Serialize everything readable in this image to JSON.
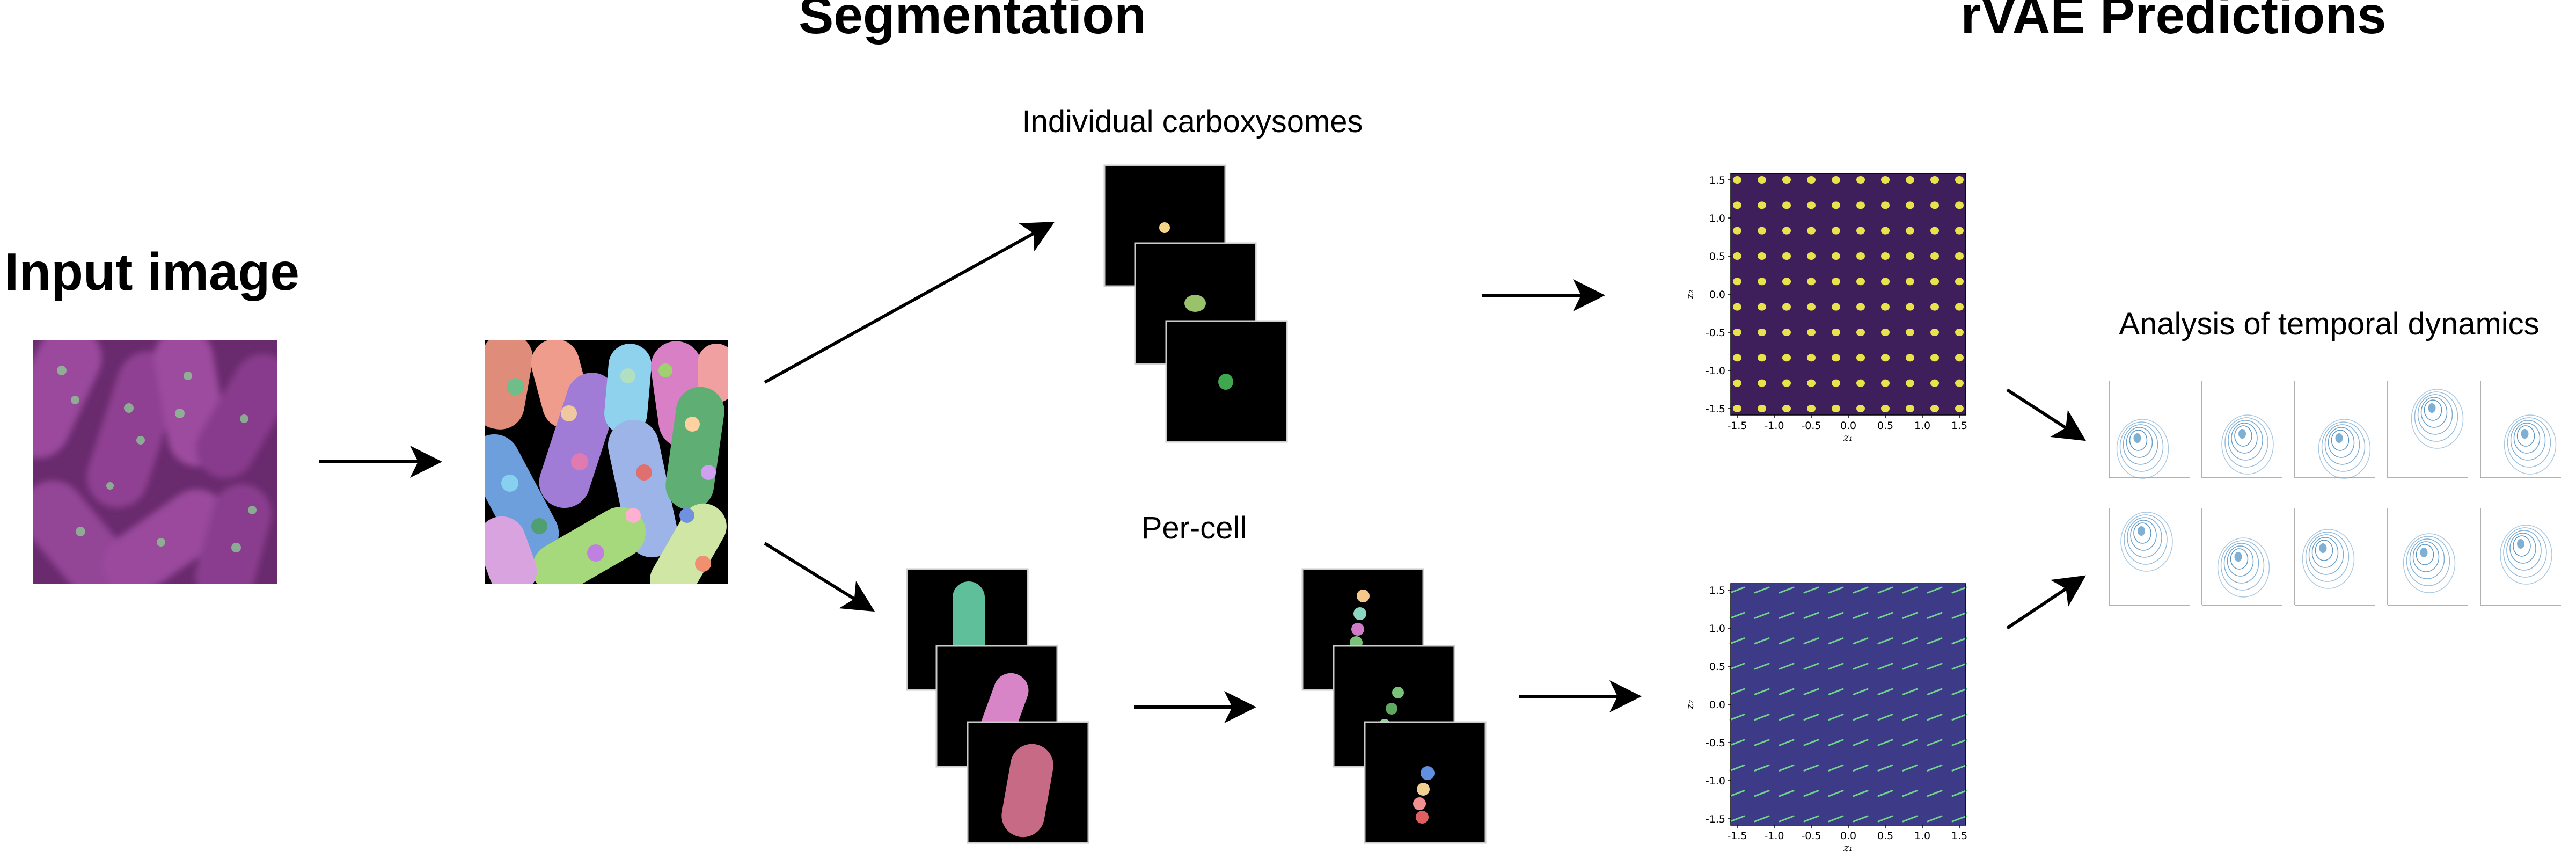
{
  "labels": {
    "input_image": "Input image",
    "segmentation": "Segmentation",
    "rvae_predictions": "rVAE Predictions",
    "individual_carboxysomes": "Individual carboxysomes",
    "per_cell": "Per-cell",
    "analysis_temporal": "Analysis of temporal dynamics"
  },
  "latent_plots": {
    "ticks": [
      "-1.5",
      "-1.0",
      "-0.5",
      "0.0",
      "0.5",
      "1.0",
      "1.5"
    ],
    "xlabel": "z₁",
    "ylabel": "z₂"
  },
  "colors": {
    "latent_bg_top": "#3f1e5c",
    "latent_bg_bottom": "#3d3a87",
    "dot_yellow": "#e8e34a",
    "dash_green": "#6fd38a",
    "cell_teal": "#5fbf9a",
    "cell_pink": "#d785c6",
    "cell_rose": "#c76a86",
    "input_purple": "#8c3a8c",
    "contour_blue": "#4a8dc2"
  }
}
